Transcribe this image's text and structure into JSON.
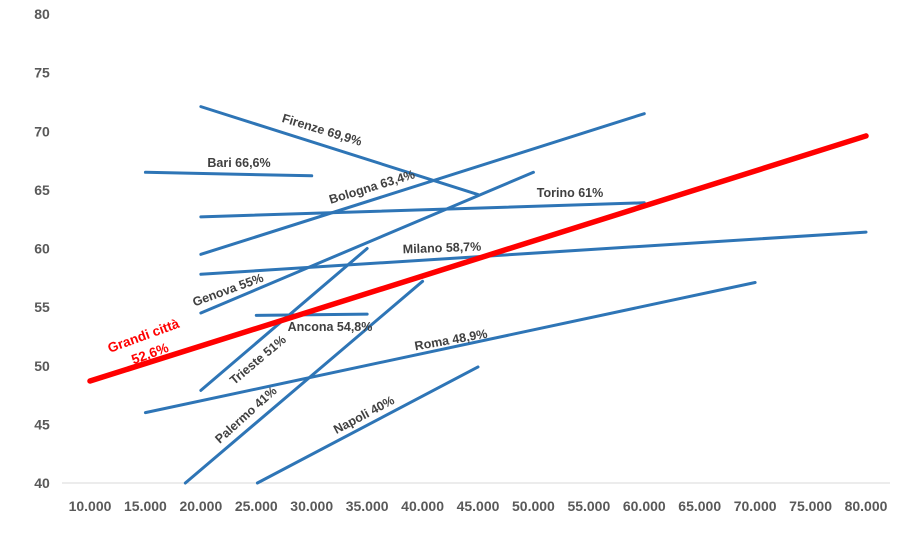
{
  "chart_data": {
    "type": "line",
    "title": "",
    "xlabel": "",
    "ylabel": "",
    "xlim": [
      10000,
      80000
    ],
    "ylim": [
      40,
      80
    ],
    "grid": false,
    "x_ticks": [
      "10.000",
      "15.000",
      "20.000",
      "25.000",
      "30.000",
      "35.000",
      "40.000",
      "45.000",
      "50.000",
      "55.000",
      "60.000",
      "65.000",
      "70.000",
      "75.000",
      "80.000"
    ],
    "y_ticks": [
      "40",
      "45",
      "50",
      "55",
      "60",
      "65",
      "70",
      "75",
      "80"
    ],
    "colors": {
      "city": "#2e75b6",
      "total": "#ff0000",
      "axis": "#d9d9d9"
    },
    "series": [
      {
        "name": "Firenze",
        "label": "Firenze 69,9%",
        "points": [
          [
            20000,
            72.1
          ],
          [
            45000,
            64.6
          ]
        ]
      },
      {
        "name": "Bari",
        "label": "Bari 66,6%",
        "points": [
          [
            15000,
            66.5
          ],
          [
            30000,
            66.2
          ]
        ]
      },
      {
        "name": "Bologna",
        "label": "Bologna 63,4%",
        "points": [
          [
            20000,
            59.5
          ],
          [
            60000,
            71.5
          ]
        ]
      },
      {
        "name": "Torino",
        "label": "Torino 61%",
        "points": [
          [
            20000,
            62.7
          ],
          [
            60000,
            63.9
          ]
        ]
      },
      {
        "name": "Milano",
        "label": "Milano 58,7%",
        "points": [
          [
            20000,
            57.8
          ],
          [
            80000,
            61.4
          ]
        ]
      },
      {
        "name": "Genova",
        "label": "Genova 55%",
        "points": [
          [
            20000,
            54.5
          ],
          [
            50000,
            66.5
          ]
        ]
      },
      {
        "name": "Ancona",
        "label": "Ancona 54,8%",
        "points": [
          [
            25000,
            54.3
          ],
          [
            35000,
            54.4
          ]
        ]
      },
      {
        "name": "Trieste",
        "label": "Trieste 51%",
        "points": [
          [
            20000,
            47.9
          ],
          [
            35000,
            60.0
          ]
        ]
      },
      {
        "name": "Palermo",
        "label": "Palermo 41%",
        "points": [
          [
            18600,
            40.0
          ],
          [
            40000,
            57.2
          ]
        ]
      },
      {
        "name": "Roma",
        "label": "Roma 48,9%",
        "points": [
          [
            15000,
            46.0
          ],
          [
            70000,
            57.1
          ]
        ]
      },
      {
        "name": "Napoli",
        "label": "Napoli 40%",
        "points": [
          [
            25100,
            40.0
          ],
          [
            45000,
            49.9
          ]
        ]
      },
      {
        "name": "Grandi città",
        "label": "Grandi città",
        "label2": "52,6%",
        "points": [
          [
            10000,
            48.7
          ],
          [
            80000,
            69.6
          ]
        ],
        "highlight": true
      }
    ]
  }
}
